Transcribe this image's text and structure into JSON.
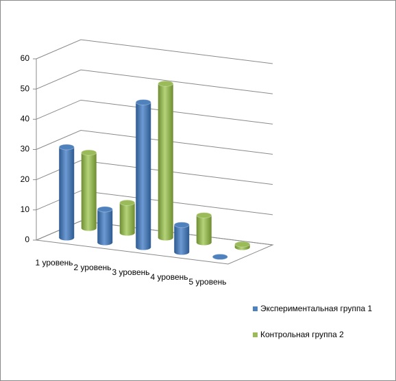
{
  "chart_data": {
    "type": "bar3d",
    "categories": [
      "1 уровень",
      "2 уровень",
      "3 уровень",
      "4 уровень",
      "5 уровень"
    ],
    "series": [
      {
        "name": "Экспериментальная группа 1",
        "color": "#4f81bd",
        "values": [
          30,
          11,
          48,
          9,
          0
        ]
      },
      {
        "name": "Контрольная группа 2",
        "color": "#9bbb59",
        "values": [
          25,
          10,
          51,
          9,
          1
        ]
      }
    ],
    "ylim": [
      0,
      60
    ],
    "yticks": [
      0,
      10,
      20,
      30,
      40,
      50,
      60
    ],
    "grid": true
  }
}
